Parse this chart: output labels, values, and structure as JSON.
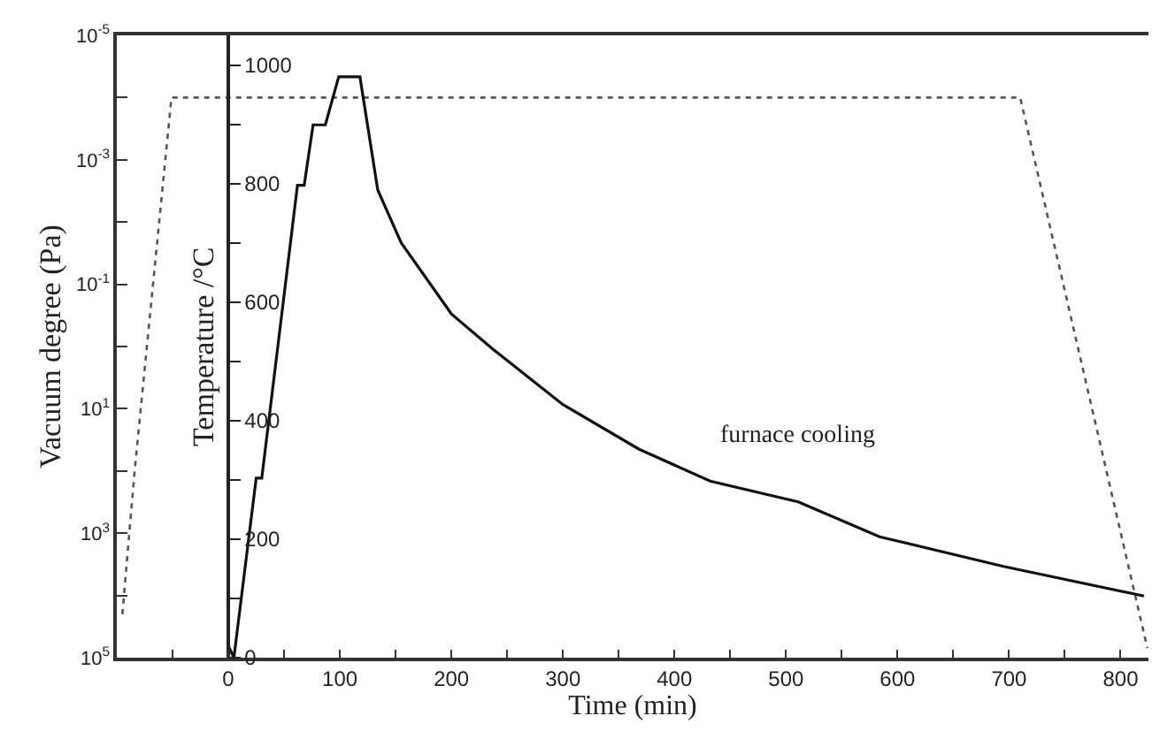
{
  "chart_data": {
    "type": "line",
    "xlabel": "Time (min)",
    "ylabel": "Vacuum degree (Pa)",
    "y2label": "Temperature /°C",
    "xlim": [
      -100,
      825
    ],
    "xticks": [
      {
        "value": -50,
        "label": null
      },
      0,
      {
        "value": 50,
        "label": null
      },
      100,
      {
        "value": 150,
        "label": null
      },
      200,
      {
        "value": 250,
        "label": null
      },
      300,
      {
        "value": 350,
        "label": null
      },
      400,
      {
        "value": 450,
        "label": null
      },
      500,
      {
        "value": 550,
        "label": null
      },
      600,
      {
        "value": 650,
        "label": null
      },
      700,
      {
        "value": 750,
        "label": null
      },
      800
    ],
    "ylim": [
      100000,
      1e-05
    ],
    "log": "y",
    "yticks": [
      {
        "value": 1e-05,
        "label": "10$^{-5}$"
      },
      {
        "value": 0.0001,
        "label": null
      },
      {
        "value": 0.001,
        "label": "10$^{-3}$"
      },
      {
        "value": 0.01,
        "label": null
      },
      {
        "value": 0.1,
        "label": "10$^{-1}$"
      },
      {
        "value": 1,
        "label": null
      },
      {
        "value": 10,
        "label": "10$^{1}$"
      },
      {
        "value": 100,
        "label": null
      },
      {
        "value": 1000,
        "label": "10$^{3}$"
      },
      {
        "value": 10000,
        "label": null
      },
      {
        "value": 100000,
        "label": "10$^{5}$"
      }
    ],
    "y2lim": [
      0,
      1050
    ],
    "y2ticks": [
      0,
      {
        "value": 100,
        "label": null
      },
      200,
      {
        "value": 300,
        "label": null
      },
      400,
      {
        "value": 500,
        "label": null
      },
      600,
      {
        "value": 700,
        "label": null
      },
      800,
      {
        "value": 900,
        "label": null
      },
      1000
    ],
    "grid": false,
    "line_style": "solid",
    "marker": "none",
    "series": [
      {
        "color": "#555555",
        "line_style": "dotted",
        "x": [
          -95,
          -84,
          -51,
          710,
          824
        ],
        "values": [
          20000,
          100,
          0.0001,
          0.0001,
          70000
        ]
      },
      {
        "color": "#111111",
        "axis": "y2",
        "x": [
          0,
          5,
          25,
          30,
          62,
          68,
          76,
          87,
          99,
          118,
          134,
          155,
          200,
          237,
          300,
          368,
          432,
          511,
          584,
          695,
          821
        ],
        "values": [
          20,
          0,
          303,
          303,
          797,
          797,
          899,
          899,
          980,
          980,
          789,
          700,
          580,
          521,
          427,
          352,
          298,
          263,
          204,
          154,
          104
        ]
      }
    ],
    "annotations": [
      "furnace cooling"
    ]
  }
}
